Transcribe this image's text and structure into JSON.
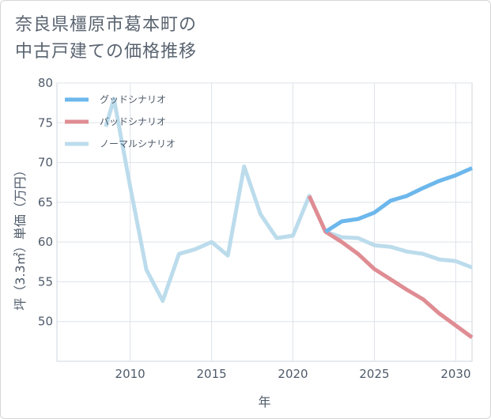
{
  "title_lines": [
    "奈良県橿原市葛本町の",
    "中古戸建ての価格推移"
  ],
  "chart_data": {
    "type": "line",
    "title": "奈良県橿原市葛本町の中古戸建ての価格推移",
    "xlabel": "年",
    "ylabel": "坪（3.3㎡）単価（万円）",
    "xlim": [
      2005.5,
      2031
    ],
    "ylim": [
      45,
      80
    ],
    "xticks": [
      2010,
      2015,
      2020,
      2025,
      2030
    ],
    "yticks": [
      50,
      55,
      60,
      65,
      70,
      75,
      80
    ],
    "grid": true,
    "legend_position": "top-left",
    "series": [
      {
        "name": "グッドシナリオ",
        "color": "#6cb7ec",
        "points": [
          [
            2022,
            61.3
          ],
          [
            2023,
            62.6
          ],
          [
            2024,
            62.9
          ],
          [
            2025,
            63.7
          ],
          [
            2026,
            65.2
          ],
          [
            2027,
            65.8
          ],
          [
            2028,
            66.8
          ],
          [
            2029,
            67.7
          ],
          [
            2030,
            68.4
          ],
          [
            2031,
            69.3
          ]
        ]
      },
      {
        "name": "バッドシナリオ",
        "color": "#df8c93",
        "points": [
          [
            2021,
            65.8
          ],
          [
            2022,
            61.3
          ],
          [
            2023,
            60.0
          ],
          [
            2024,
            58.5
          ],
          [
            2025,
            56.6
          ],
          [
            2026,
            55.3
          ],
          [
            2027,
            54.0
          ],
          [
            2028,
            52.8
          ],
          [
            2029,
            51.0
          ],
          [
            2030,
            49.5
          ],
          [
            2031,
            48.0
          ]
        ]
      },
      {
        "name": "ノーマルシナリオ",
        "color": "#bcdcec",
        "points": [
          [
            2008.5,
            74.5
          ],
          [
            2009,
            78.0
          ],
          [
            2010,
            67.0
          ],
          [
            2011,
            56.5
          ],
          [
            2012,
            52.6
          ],
          [
            2013,
            58.5
          ],
          [
            2014,
            59.1
          ],
          [
            2015,
            60.0
          ],
          [
            2016,
            58.3
          ],
          [
            2017,
            69.5
          ],
          [
            2018,
            63.5
          ],
          [
            2019,
            60.5
          ],
          [
            2020,
            60.8
          ],
          [
            2021,
            65.8
          ],
          [
            2022,
            61.3
          ],
          [
            2023,
            60.6
          ],
          [
            2024,
            60.5
          ],
          [
            2025,
            59.6
          ],
          [
            2026,
            59.4
          ],
          [
            2027,
            58.8
          ],
          [
            2028,
            58.5
          ],
          [
            2029,
            57.8
          ],
          [
            2030,
            57.6
          ],
          [
            2031,
            56.8
          ]
        ]
      }
    ]
  }
}
